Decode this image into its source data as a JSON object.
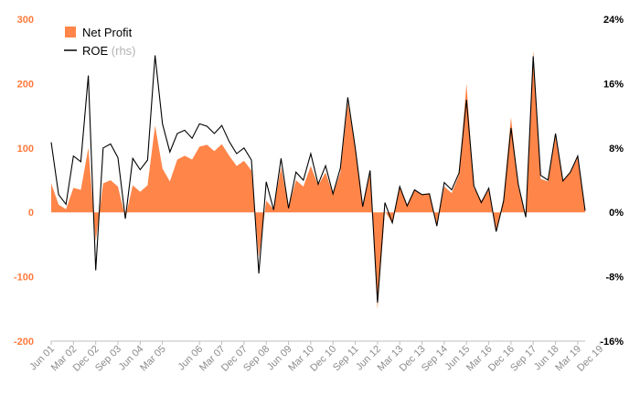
{
  "chart_data": {
    "type": "area",
    "grid": false,
    "legend_placement": "top-left",
    "colors": {
      "area": "#ff8549",
      "line": "#000000",
      "left_axis_text": "#ff7a3d",
      "right_axis_text": "#000000",
      "x_axis_text": "#8c8c8c"
    },
    "legend": [
      {
        "label": "Net Profit",
        "note": ""
      },
      {
        "label": "ROE ",
        "note": "(rhs)"
      }
    ],
    "y_left": {
      "min": -200,
      "max": 300,
      "ticks": [
        300,
        200,
        100,
        0,
        -100,
        -200
      ]
    },
    "y_right": {
      "min": -16,
      "max": 24,
      "ticks": [
        "24%",
        "16%",
        "8%",
        "0%",
        "-8%",
        "-16%"
      ],
      "tick_values": [
        24,
        16,
        8,
        0,
        -8,
        -16
      ]
    },
    "x_axis": {
      "start": "Jun 01",
      "tick_labels": [
        "Jun 01",
        "Mar 02",
        "Dec 02",
        "Sep 03",
        "Jun 04",
        "Mar 05",
        "Jun 06",
        "Mar 07",
        "Dec 07",
        "Sep 08",
        "Jun 09",
        "Mar 10",
        "Dec 10",
        "Sep 11",
        "Jun 12",
        "Mar 13",
        "Dec 13",
        "Sep 14",
        "Jun 15",
        "Mar 16",
        "Dec 16",
        "Sep 17",
        "Jun 18",
        "Mar 19",
        "Dec 19"
      ],
      "tick_index": [
        0,
        3,
        6,
        9,
        12,
        15,
        20,
        23,
        26,
        29,
        32,
        35,
        38,
        41,
        44,
        47,
        50,
        53,
        56,
        59,
        62,
        65,
        68,
        71,
        74
      ]
    },
    "series": [
      {
        "name": "Net Profit",
        "axis": "left",
        "values": [
          45,
          12,
          5,
          38,
          35,
          100,
          -45,
          45,
          50,
          40,
          -8,
          42,
          32,
          42,
          135,
          68,
          48,
          82,
          88,
          82,
          102,
          105,
          95,
          106,
          88,
          72,
          80,
          65,
          -70,
          18,
          5,
          70,
          8,
          50,
          40,
          72,
          42,
          62,
          28,
          62,
          170,
          100,
          10,
          60,
          -150,
          2,
          -17,
          38,
          12,
          35,
          28,
          30,
          -20,
          40,
          30,
          58,
          200,
          38,
          18,
          35,
          -30,
          22,
          148,
          38,
          -5,
          252,
          52,
          48,
          118,
          48,
          62,
          85,
          0
        ]
      },
      {
        "name": "ROE",
        "axis": "right",
        "values": [
          8.7,
          2.2,
          1.0,
          7.0,
          6.3,
          17.0,
          -7.2,
          8.0,
          8.5,
          6.8,
          -0.8,
          6.7,
          5.3,
          6.5,
          19.5,
          11.0,
          7.5,
          9.8,
          10.2,
          9.2,
          11.0,
          10.7,
          9.8,
          10.8,
          8.8,
          7.3,
          8.0,
          6.5,
          -7.6,
          3.8,
          0.3,
          6.7,
          0.5,
          5.0,
          4.0,
          7.3,
          3.5,
          5.8,
          2.3,
          5.5,
          14.3,
          8.0,
          0.7,
          5.2,
          -11.2,
          1.2,
          -1.3,
          3.2,
          0.8,
          2.8,
          2.2,
          2.3,
          -1.7,
          3.7,
          2.8,
          4.9,
          14.0,
          3.3,
          1.2,
          3.0,
          -2.4,
          1.4,
          10.5,
          3.4,
          -0.6,
          19.4,
          4.6,
          4.0,
          9.8,
          3.9,
          5.0,
          7.0,
          0.2
        ]
      }
    ]
  }
}
